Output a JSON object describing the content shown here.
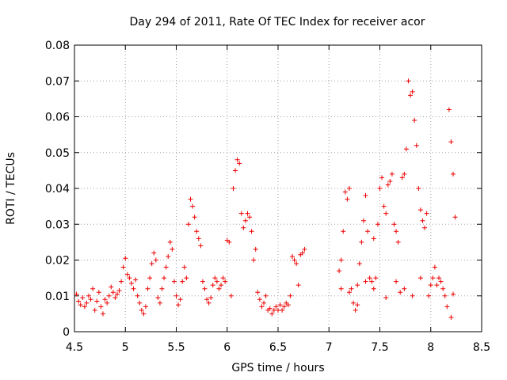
{
  "chart_data": {
    "type": "scatter",
    "title": "Day 294 of 2011, Rate Of TEC Index for receiver acor",
    "xlabel": "GPS time / hours",
    "ylabel": "ROTI / TECUs",
    "xlim": [
      4.5,
      8.5
    ],
    "ylim": [
      0,
      0.08
    ],
    "x_ticks": [
      "4.5",
      "5",
      "5.5",
      "6",
      "6.5",
      "7",
      "7.5",
      "8",
      "8.5"
    ],
    "y_ticks": [
      "0",
      "0.01",
      "0.02",
      "0.03",
      "0.04",
      "0.05",
      "0.06",
      "0.07",
      "0.08"
    ],
    "grid": true,
    "marker": "plus",
    "colors": {
      "points": "#ee0000"
    },
    "series": [
      {
        "values": [
          [
            4.52,
            0.0105
          ],
          [
            4.54,
            0.0085
          ],
          [
            4.56,
            0.0075
          ],
          [
            4.58,
            0.0095
          ],
          [
            4.6,
            0.007
          ],
          [
            4.62,
            0.008
          ],
          [
            4.64,
            0.01
          ],
          [
            4.66,
            0.009
          ],
          [
            4.68,
            0.012
          ],
          [
            4.7,
            0.006
          ],
          [
            4.72,
            0.0085
          ],
          [
            4.74,
            0.011
          ],
          [
            4.76,
            0.007
          ],
          [
            4.78,
            0.005
          ],
          [
            4.8,
            0.009
          ],
          [
            4.82,
            0.008
          ],
          [
            4.84,
            0.01
          ],
          [
            4.86,
            0.0125
          ],
          [
            4.88,
            0.011
          ],
          [
            4.9,
            0.0095
          ],
          [
            4.92,
            0.0105
          ],
          [
            4.94,
            0.0115
          ],
          [
            4.96,
            0.014
          ],
          [
            4.98,
            0.018
          ],
          [
            5.0,
            0.0205
          ],
          [
            5.02,
            0.016
          ],
          [
            5.04,
            0.015
          ],
          [
            5.06,
            0.0135
          ],
          [
            5.08,
            0.012
          ],
          [
            5.1,
            0.0145
          ],
          [
            5.12,
            0.01
          ],
          [
            5.14,
            0.008
          ],
          [
            5.16,
            0.006
          ],
          [
            5.18,
            0.005
          ],
          [
            5.2,
            0.007
          ],
          [
            5.22,
            0.012
          ],
          [
            5.24,
            0.015
          ],
          [
            5.26,
            0.019
          ],
          [
            5.28,
            0.022
          ],
          [
            5.3,
            0.02
          ],
          [
            5.32,
            0.0095
          ],
          [
            5.34,
            0.008
          ],
          [
            5.36,
            0.012
          ],
          [
            5.38,
            0.015
          ],
          [
            5.4,
            0.018
          ],
          [
            5.42,
            0.021
          ],
          [
            5.44,
            0.025
          ],
          [
            5.46,
            0.023
          ],
          [
            5.48,
            0.014
          ],
          [
            5.5,
            0.01
          ],
          [
            5.52,
            0.0075
          ],
          [
            5.54,
            0.009
          ],
          [
            5.56,
            0.014
          ],
          [
            5.58,
            0.018
          ],
          [
            5.6,
            0.015
          ],
          [
            5.62,
            0.03
          ],
          [
            5.64,
            0.037
          ],
          [
            5.66,
            0.035
          ],
          [
            5.68,
            0.032
          ],
          [
            5.7,
            0.028
          ],
          [
            5.72,
            0.026
          ],
          [
            5.74,
            0.024
          ],
          [
            5.76,
            0.014
          ],
          [
            5.78,
            0.012
          ],
          [
            5.8,
            0.009
          ],
          [
            5.82,
            0.008
          ],
          [
            5.84,
            0.0095
          ],
          [
            5.86,
            0.013
          ],
          [
            5.88,
            0.015
          ],
          [
            5.9,
            0.014
          ],
          [
            5.92,
            0.012
          ],
          [
            5.94,
            0.013
          ],
          [
            5.96,
            0.015
          ],
          [
            5.98,
            0.014
          ],
          [
            6.0,
            0.0255
          ],
          [
            6.02,
            0.025
          ],
          [
            6.04,
            0.01
          ],
          [
            6.06,
            0.04
          ],
          [
            6.08,
            0.045
          ],
          [
            6.1,
            0.048
          ],
          [
            6.12,
            0.047
          ],
          [
            6.14,
            0.033
          ],
          [
            6.16,
            0.029
          ],
          [
            6.18,
            0.031
          ],
          [
            6.2,
            0.033
          ],
          [
            6.22,
            0.032
          ],
          [
            6.24,
            0.028
          ],
          [
            6.26,
            0.02
          ],
          [
            6.28,
            0.023
          ],
          [
            6.3,
            0.011
          ],
          [
            6.32,
            0.009
          ],
          [
            6.34,
            0.007
          ],
          [
            6.36,
            0.008
          ],
          [
            6.38,
            0.01
          ],
          [
            6.4,
            0.006
          ],
          [
            6.42,
            0.0065
          ],
          [
            6.44,
            0.005
          ],
          [
            6.46,
            0.006
          ],
          [
            6.48,
            0.007
          ],
          [
            6.5,
            0.006
          ],
          [
            6.52,
            0.0075
          ],
          [
            6.54,
            0.006
          ],
          [
            6.56,
            0.007
          ],
          [
            6.58,
            0.008
          ],
          [
            6.6,
            0.0075
          ],
          [
            6.62,
            0.01
          ],
          [
            6.64,
            0.021
          ],
          [
            6.66,
            0.02
          ],
          [
            6.68,
            0.019
          ],
          [
            6.7,
            0.013
          ],
          [
            6.72,
            0.0215
          ],
          [
            6.74,
            0.022
          ],
          [
            6.76,
            0.023
          ],
          [
            7.1,
            0.017
          ],
          [
            7.12,
            0.02
          ],
          [
            7.14,
            0.028
          ],
          [
            7.16,
            0.039
          ],
          [
            7.18,
            0.037
          ],
          [
            7.2,
            0.04
          ],
          [
            7.22,
            0.012
          ],
          [
            7.24,
            0.008
          ],
          [
            7.26,
            0.006
          ],
          [
            7.28,
            0.0075
          ],
          [
            7.3,
            0.019
          ],
          [
            7.32,
            0.025
          ],
          [
            7.34,
            0.031
          ],
          [
            7.36,
            0.038
          ],
          [
            7.38,
            0.028
          ],
          [
            7.4,
            0.015
          ],
          [
            7.42,
            0.014
          ],
          [
            7.44,
            0.026
          ],
          [
            7.46,
            0.015
          ],
          [
            7.48,
            0.03
          ],
          [
            7.5,
            0.04
          ],
          [
            7.52,
            0.043
          ],
          [
            7.54,
            0.035
          ],
          [
            7.56,
            0.033
          ],
          [
            7.58,
            0.041
          ],
          [
            7.6,
            0.042
          ],
          [
            7.62,
            0.044
          ],
          [
            7.64,
            0.03
          ],
          [
            7.66,
            0.028
          ],
          [
            7.68,
            0.025
          ],
          [
            7.7,
            0.011
          ],
          [
            7.72,
            0.043
          ],
          [
            7.74,
            0.044
          ],
          [
            7.76,
            0.051
          ],
          [
            7.78,
            0.07
          ],
          [
            7.8,
            0.066
          ],
          [
            7.82,
            0.067
          ],
          [
            7.84,
            0.059
          ],
          [
            7.86,
            0.052
          ],
          [
            7.88,
            0.04
          ],
          [
            7.9,
            0.034
          ],
          [
            7.92,
            0.031
          ],
          [
            7.94,
            0.029
          ],
          [
            7.96,
            0.033
          ],
          [
            7.98,
            0.01
          ],
          [
            8.0,
            0.013
          ],
          [
            8.02,
            0.015
          ],
          [
            8.04,
            0.018
          ],
          [
            8.06,
            0.013
          ],
          [
            8.08,
            0.015
          ],
          [
            8.1,
            0.014
          ],
          [
            8.12,
            0.012
          ],
          [
            8.14,
            0.01
          ],
          [
            8.16,
            0.007
          ],
          [
            8.18,
            0.062
          ],
          [
            8.2,
            0.053
          ],
          [
            8.22,
            0.044
          ],
          [
            8.24,
            0.032
          ],
          [
            7.12,
            0.012
          ],
          [
            7.2,
            0.011
          ],
          [
            7.28,
            0.013
          ],
          [
            7.36,
            0.014
          ],
          [
            7.44,
            0.012
          ],
          [
            7.56,
            0.0095
          ],
          [
            7.66,
            0.014
          ],
          [
            7.74,
            0.012
          ],
          [
            7.82,
            0.01
          ],
          [
            7.9,
            0.015
          ],
          [
            8.2,
            0.004
          ],
          [
            8.22,
            0.0105
          ]
        ]
      }
    ]
  }
}
